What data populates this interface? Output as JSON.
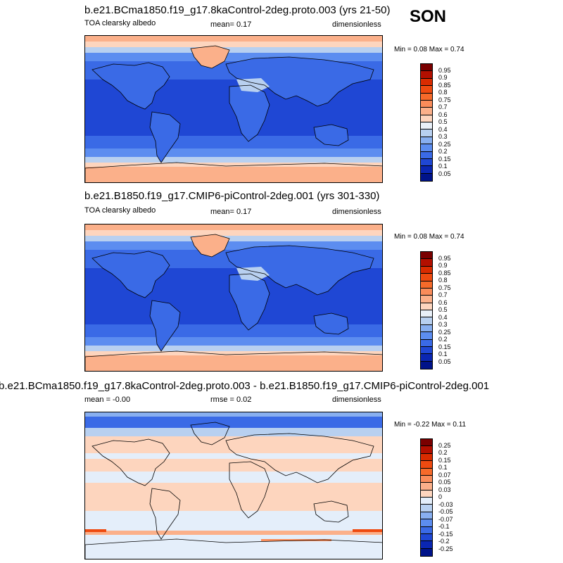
{
  "season": "SON",
  "panels": [
    {
      "title": "b.e21.BCma1850.f19_g17.8kaControl-2deg.proto.003 (yrs 21-50)",
      "left": "TOA clearsky albedo",
      "center": "mean=   0.17",
      "right": "dimensionless",
      "minmax": "Min =   0.08 Max =   0.74",
      "colorbar": {
        "labels": [
          "0.95",
          "0.9",
          "0.85",
          "0.8",
          "0.75",
          "0.7",
          "0.6",
          "0.5",
          "0.4",
          "0.3",
          "0.25",
          "0.2",
          "0.15",
          "0.1",
          "0.05"
        ],
        "colors": [
          "#7a0000",
          "#b30f00",
          "#d92b00",
          "#ee4a10",
          "#f56a2a",
          "#f98c5a",
          "#fbb08a",
          "#fdd5be",
          "#e9f0f8",
          "#b8d0f0",
          "#88aff0",
          "#5c8df0",
          "#3a6ae6",
          "#1f47d4",
          "#0a26b2",
          "#00138a"
        ]
      },
      "map_style": "albedo"
    },
    {
      "title": "b.e21.B1850.f19_g17.CMIP6-piControl-2deg.001 (yrs 301-330)",
      "left": "TOA clearsky albedo",
      "center": "mean=   0.17",
      "right": "dimensionless",
      "minmax": "Min =   0.08 Max =   0.74",
      "colorbar": {
        "labels": [
          "0.95",
          "0.9",
          "0.85",
          "0.8",
          "0.75",
          "0.7",
          "0.6",
          "0.5",
          "0.4",
          "0.3",
          "0.25",
          "0.2",
          "0.15",
          "0.1",
          "0.05"
        ],
        "colors": [
          "#7a0000",
          "#b30f00",
          "#d92b00",
          "#ee4a10",
          "#f56a2a",
          "#f98c5a",
          "#fbb08a",
          "#fdd5be",
          "#e9f0f8",
          "#b8d0f0",
          "#88aff0",
          "#5c8df0",
          "#3a6ae6",
          "#1f47d4",
          "#0a26b2",
          "#00138a"
        ]
      },
      "map_style": "albedo"
    },
    {
      "title": "b.e21.BCma1850.f19_g17.8kaControl-2deg.proto.003 - b.e21.B1850.f19_g17.CMIP6-piControl-2deg.001",
      "left": "mean =  -0.00",
      "center": "rmse =  0.02",
      "right": "dimensionless",
      "minmax": "Min =  -0.22 Max =   0.11",
      "colorbar": {
        "labels": [
          "0.25",
          "0.2",
          "0.15",
          "0.1",
          "0.07",
          "0.05",
          "0.03",
          "0",
          "-0.03",
          "-0.05",
          "-0.07",
          "-0.1",
          "-0.15",
          "-0.2",
          "-0.25"
        ],
        "colors": [
          "#7a0000",
          "#b30f00",
          "#d92b00",
          "#ee4a10",
          "#f56a2a",
          "#f98c5a",
          "#fbb08a",
          "#fdd5be",
          "#e4eefa",
          "#b8d0f0",
          "#88aff0",
          "#5c8df0",
          "#3a6ae6",
          "#1f47d4",
          "#0a26b2",
          "#00138a"
        ]
      },
      "map_style": "diff"
    }
  ]
}
